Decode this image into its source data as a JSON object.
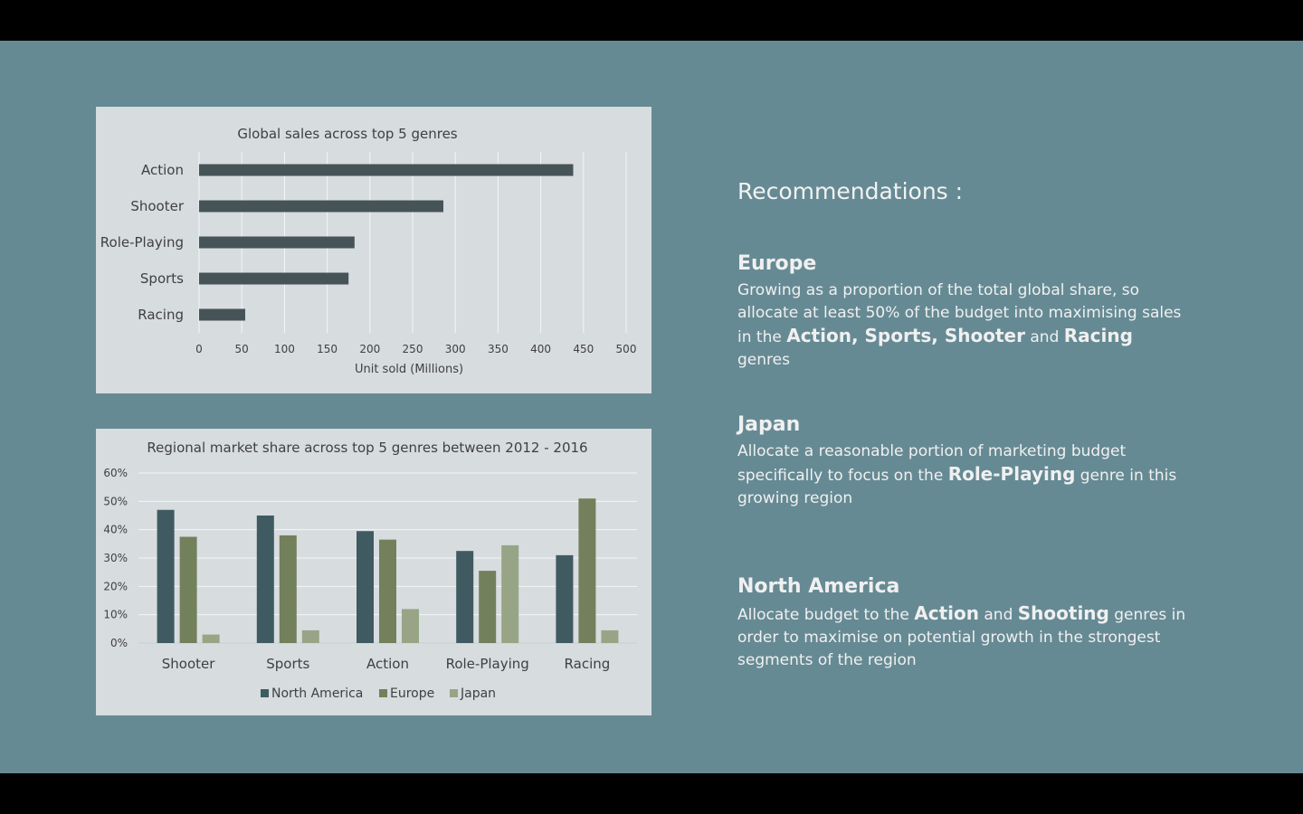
{
  "recommendations": {
    "title": "Recommendations :",
    "europe": {
      "heading": "Europe",
      "t1": "Growing as a proportion of the total global share, so allocate at least 50% of the budget into maximising sales in the",
      "b1": "Action, Sports, Shooter",
      "t2": "and",
      "b2": "Racing",
      "t3": "genres"
    },
    "japan": {
      "heading": "Japan",
      "t1": "Allocate a reasonable portion of marketing budget specifically to focus on the",
      "b1": "Role-Playing",
      "t2": "genre in this growing region"
    },
    "north_america": {
      "heading": "North America",
      "t1": "Allocate budget to the",
      "b1": "Action",
      "t2": "and",
      "b2": "Shooting",
      "t3": "genres in order to maximise on potential growth in the strongest segments of the region"
    }
  },
  "colors": {
    "slide_bg": "#668a94",
    "panel_bg": "#d7dcdf",
    "global_bar": "#465457",
    "north_america": "#405a61",
    "europe": "#72805c",
    "japan": "#97a586"
  },
  "chart_data": [
    {
      "type": "bar",
      "orientation": "horizontal",
      "title": "Global sales across top 5 genres",
      "xlabel": "Unit sold (Millions)",
      "ylabel": "",
      "categories": [
        "Action",
        "Shooter",
        "Role-Playing",
        "Sports",
        "Racing"
      ],
      "values": [
        438,
        286,
        182,
        175,
        54
      ],
      "xlim": [
        0,
        500
      ],
      "xticks": [
        0,
        50,
        100,
        150,
        200,
        250,
        300,
        350,
        400,
        450,
        500
      ],
      "grid": "vertical",
      "legend": "none"
    },
    {
      "type": "bar",
      "orientation": "vertical",
      "title": "Regional market share across top 5 genres between 2012 - 2016",
      "xlabel": "",
      "ylabel": "",
      "categories": [
        "Shooter",
        "Sports",
        "Action",
        "Role-Playing",
        "Racing"
      ],
      "series": [
        {
          "name": "North America",
          "values": [
            47,
            45,
            39.5,
            32.5,
            31
          ]
        },
        {
          "name": "Europe",
          "values": [
            37.5,
            38,
            36.5,
            25.5,
            51
          ]
        },
        {
          "name": "Japan",
          "values": [
            3,
            4.5,
            12,
            34.5,
            4.5
          ]
        }
      ],
      "ylim": [
        0,
        60
      ],
      "yticks": [
        "0%",
        "10%",
        "20%",
        "30%",
        "40%",
        "50%",
        "60%"
      ],
      "grid": "horizontal",
      "legend": "bottom"
    }
  ]
}
